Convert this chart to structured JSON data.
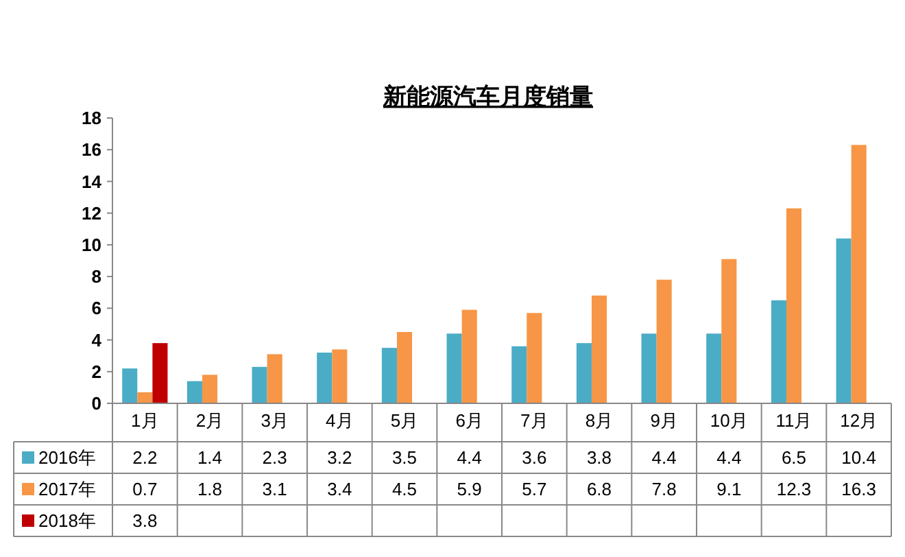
{
  "chart_data": {
    "type": "bar",
    "title": "新能源汽车月度销量",
    "categories": [
      "1月",
      "2月",
      "3月",
      "4月",
      "5月",
      "6月",
      "7月",
      "8月",
      "9月",
      "10月",
      "11月",
      "12月"
    ],
    "series": [
      {
        "name": "2016年",
        "color": "#4bacc6",
        "values": [
          2.2,
          1.4,
          2.3,
          3.2,
          3.5,
          4.4,
          3.6,
          3.8,
          4.4,
          4.4,
          6.5,
          10.4
        ],
        "value_labels": [
          "2.2",
          "1.4",
          "2.3",
          "3.2",
          "3.5",
          "4.4",
          "3.6",
          "3.8",
          "4.4",
          "4.4",
          "6.5",
          "10.4"
        ]
      },
      {
        "name": "2017年",
        "color": "#f79646",
        "values": [
          0.7,
          1.8,
          3.1,
          3.4,
          4.5,
          5.9,
          5.7,
          6.8,
          7.8,
          9.1,
          12.3,
          16.3
        ],
        "value_labels": [
          "0.7",
          "1.8",
          "3.1",
          "3.4",
          "4.5",
          "5.9",
          "5.7",
          "6.8",
          "7.8",
          "9.1",
          "12.3",
          "16.3"
        ]
      },
      {
        "name": "2018年",
        "color": "#c00000",
        "values": [
          3.8,
          null,
          null,
          null,
          null,
          null,
          null,
          null,
          null,
          null,
          null,
          null
        ],
        "value_labels": [
          "3.8",
          null,
          null,
          null,
          null,
          null,
          null,
          null,
          null,
          null,
          null,
          null
        ]
      }
    ],
    "ylim": [
      0,
      18
    ],
    "yticks": [
      0,
      2,
      4,
      6,
      8,
      10,
      12,
      14,
      16,
      18
    ],
    "grid": false,
    "legend": "bottom"
  }
}
